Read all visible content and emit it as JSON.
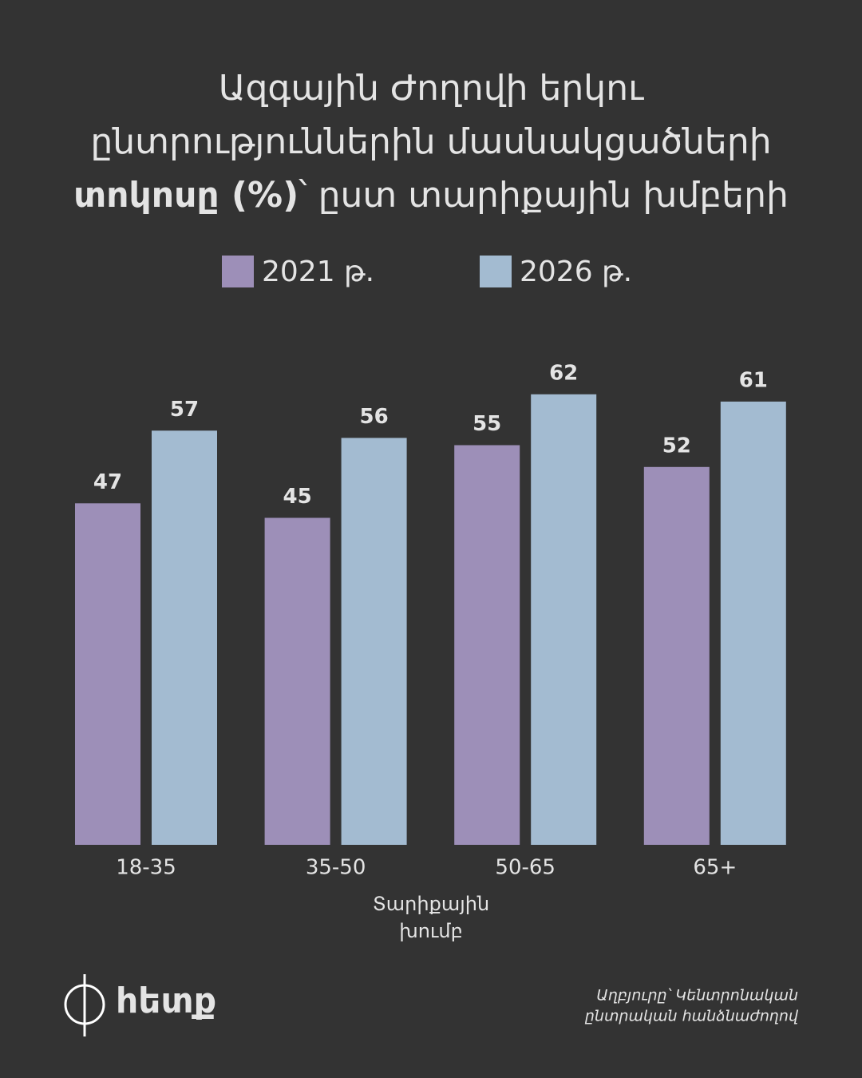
{
  "chart_data": {
    "type": "bar",
    "title_lines": [
      "Ազգային Ժողովի երկու",
      "ընտրություններին մասնակցածների"
    ],
    "title_bold": "տոկոսը (%)",
    "title_end": "՝ ըստ տարիքային խմբերի",
    "categories": [
      "18-35",
      "35-50",
      "50-65",
      "65+"
    ],
    "series": [
      {
        "name": "2021 թ.",
        "color": "#9d8fb8",
        "values": [
          47,
          45,
          55,
          52
        ]
      },
      {
        "name": "2026 թ.",
        "color": "#a3bbd1",
        "values": [
          57,
          56,
          62,
          61
        ]
      }
    ],
    "x_label": [
      "Տարիքային",
      "խումբ"
    ],
    "ylim": [
      0,
      66
    ],
    "source": [
      "Աղբյուրը՝ Կենտրոնական",
      "ընտրական հանձնաժողով"
    ],
    "logo": "հետք"
  }
}
